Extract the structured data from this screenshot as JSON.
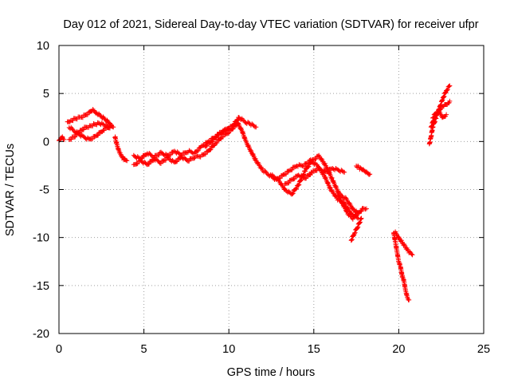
{
  "chart_data": {
    "type": "scatter",
    "title": "Day 012 of 2021, Sidereal Day-to-day VTEC variation (SDTVAR) for receiver ufpr",
    "xlabel": "GPS time / hours",
    "ylabel": "SDTVAR / TECUs",
    "xlim": [
      0,
      25
    ],
    "ylim": [
      -20,
      10
    ],
    "xticks": [
      0,
      5,
      10,
      15,
      20,
      25
    ],
    "yticks": [
      -20,
      -15,
      -10,
      -5,
      0,
      5,
      10
    ],
    "grid": true,
    "legend": "none",
    "marker": "plus",
    "color": "#ff0000",
    "tracks": [
      {
        "x": [
          0.0,
          0.1,
          0.2,
          0.3
        ],
        "y": [
          0.0,
          0.3,
          0.5,
          0.2
        ]
      },
      {
        "x": [
          0.5,
          0.7,
          1.0,
          1.4,
          1.8,
          2.0,
          2.2,
          2.5,
          2.8,
          3.0,
          3.2
        ],
        "y": [
          2.0,
          2.2,
          2.4,
          2.6,
          3.0,
          3.3,
          3.0,
          2.6,
          2.2,
          1.8,
          1.5
        ]
      },
      {
        "x": [
          0.6,
          0.9,
          1.2,
          1.5,
          1.8,
          2.1,
          2.4,
          2.7,
          3.0
        ],
        "y": [
          0.2,
          0.5,
          1.0,
          1.4,
          1.6,
          1.8,
          1.9,
          1.7,
          1.4
        ]
      },
      {
        "x": [
          0.6,
          1.0,
          1.4,
          1.8,
          2.2,
          2.6,
          3.0
        ],
        "y": [
          1.5,
          1.0,
          0.5,
          0.2,
          0.6,
          1.2,
          1.6
        ]
      },
      {
        "x": [
          3.3,
          3.4,
          3.5,
          3.6,
          3.7,
          3.8,
          3.9,
          4.0
        ],
        "y": [
          0.5,
          -0.3,
          -0.8,
          -1.2,
          -1.5,
          -1.8,
          -2.0,
          -2.0
        ]
      },
      {
        "x": [
          4.4,
          4.8,
          5.2,
          5.6,
          6.0,
          6.4,
          6.8,
          7.2,
          7.6,
          8.0,
          8.4,
          8.8,
          9.2,
          9.6,
          10.0,
          10.3,
          10.5
        ],
        "y": [
          -2.5,
          -2.0,
          -2.4,
          -1.8,
          -2.2,
          -1.7,
          -2.2,
          -1.6,
          -2.0,
          -1.6,
          -1.5,
          -1.0,
          -0.2,
          0.5,
          1.0,
          1.5,
          1.8
        ]
      },
      {
        "x": [
          4.4,
          4.8,
          5.2,
          5.6,
          6.0,
          6.4,
          6.8,
          7.2,
          7.6,
          8.0,
          8.4,
          8.8,
          9.2,
          9.6,
          10.0
        ],
        "y": [
          -1.5,
          -1.8,
          -1.2,
          -1.6,
          -1.2,
          -1.5,
          -1.0,
          -1.4,
          -1.0,
          -1.2,
          -0.5,
          0.0,
          0.5,
          1.0,
          1.3
        ]
      },
      {
        "x": [
          8.6,
          9.0,
          9.4,
          9.8,
          10.2,
          10.6,
          11.0,
          11.3,
          11.6
        ],
        "y": [
          -0.5,
          0.0,
          0.8,
          1.2,
          1.6,
          2.5,
          2.0,
          1.8,
          1.5
        ]
      },
      {
        "x": [
          10.5,
          10.8,
          11.0,
          11.3,
          11.6,
          12.0,
          12.4,
          12.8,
          13.2,
          13.6,
          14.0,
          14.4,
          14.8,
          15.2,
          15.6,
          16.0,
          16.4,
          16.8,
          17.2,
          17.6
        ],
        "y": [
          2.0,
          1.0,
          0.0,
          -1.0,
          -2.0,
          -3.0,
          -3.5,
          -4.0,
          -3.5,
          -3.0,
          -2.5,
          -2.5,
          -2.0,
          -2.5,
          -3.5,
          -5.0,
          -6.0,
          -6.5,
          -7.5,
          -8.0
        ]
      },
      {
        "x": [
          12.5,
          12.9,
          13.3,
          13.7,
          14.1,
          14.5,
          14.9,
          15.3,
          15.7,
          16.1,
          16.5,
          16.9,
          17.3,
          17.6
        ],
        "y": [
          -3.5,
          -4.0,
          -5.0,
          -5.5,
          -4.5,
          -3.0,
          -2.0,
          -1.5,
          -2.5,
          -4.0,
          -5.5,
          -6.0,
          -7.0,
          -7.5
        ]
      },
      {
        "x": [
          13.3,
          13.7,
          14.1,
          14.5,
          14.9,
          15.3,
          15.7,
          16.1,
          16.5,
          16.8
        ],
        "y": [
          -4.5,
          -4.0,
          -3.5,
          -3.8,
          -3.2,
          -2.8,
          -3.2,
          -2.8,
          -3.0,
          -3.2
        ]
      },
      {
        "x": [
          16.4,
          16.7,
          17.0,
          17.3,
          17.6,
          17.9,
          18.1
        ],
        "y": [
          -5.5,
          -6.5,
          -7.5,
          -8.0,
          -7.5,
          -7.0,
          -7.0
        ]
      },
      {
        "x": [
          17.2,
          17.4,
          17.6,
          17.8
        ],
        "y": [
          -10.3,
          -9.5,
          -8.8,
          -8.0
        ]
      },
      {
        "x": [
          17.5,
          17.7,
          17.9,
          18.1,
          18.3
        ],
        "y": [
          -2.5,
          -2.8,
          -3.0,
          -3.2,
          -3.4
        ]
      },
      {
        "x": [
          19.7,
          19.8,
          19.9,
          20.0,
          20.1,
          20.2,
          20.3,
          20.4,
          20.5,
          20.6
        ],
        "y": [
          -9.5,
          -10.5,
          -11.5,
          -12.5,
          -13.0,
          -14.0,
          -14.5,
          -15.5,
          -16.2,
          -16.5
        ]
      },
      {
        "x": [
          19.8,
          20.0,
          20.2,
          20.4,
          20.6,
          20.8
        ],
        "y": [
          -9.5,
          -10.0,
          -10.5,
          -11.0,
          -11.5,
          -11.8
        ]
      },
      {
        "x": [
          21.8,
          21.9,
          22.0,
          22.2,
          22.4,
          22.6,
          22.8,
          23.0
        ],
        "y": [
          -0.3,
          0.5,
          1.5,
          2.5,
          3.5,
          4.5,
          5.3,
          5.8
        ]
      },
      {
        "x": [
          21.9,
          22.1,
          22.3,
          22.5,
          22.7,
          22.9,
          23.0
        ],
        "y": [
          1.5,
          2.5,
          3.0,
          3.5,
          3.8,
          4.0,
          4.2
        ]
      },
      {
        "x": [
          22.0,
          22.2,
          22.4,
          22.6,
          22.8
        ],
        "y": [
          2.5,
          3.0,
          3.0,
          2.5,
          2.8
        ]
      }
    ]
  }
}
